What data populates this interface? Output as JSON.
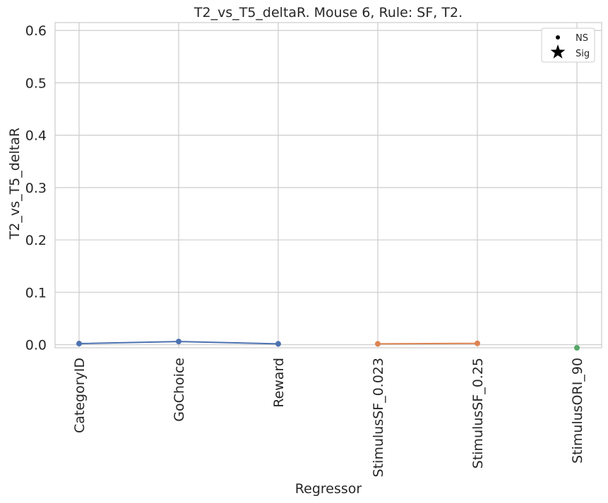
{
  "chart_data": {
    "type": "line",
    "title": "T2_vs_T5_deltaR. Mouse 6, Rule: SF, T2.",
    "xlabel": "Regressor",
    "ylabel": "T2_vs_T5_deltaR",
    "categories": [
      "CategoryID",
      "GoChoice",
      "Reward",
      "StimulusSF_0.023",
      "StimulusSF_0.25",
      "StimulusORI_90"
    ],
    "ylim": [
      -0.006,
      0.615
    ],
    "yticks": [
      0.0,
      0.1,
      0.2,
      0.3,
      0.4,
      0.5,
      0.6
    ],
    "ytick_labels": [
      "0.0",
      "0.1",
      "0.2",
      "0.3",
      "0.4",
      "0.5",
      "0.6"
    ],
    "grid": true,
    "legend_position": "top-right",
    "legend": [
      {
        "label": "NS",
        "marker": "dot"
      },
      {
        "label": "Sig",
        "marker": "star"
      }
    ],
    "series": [
      {
        "color": "#4c72b0",
        "x": [
          0,
          1,
          2
        ],
        "values": [
          0.002,
          0.006,
          0.0015
        ]
      },
      {
        "color": "#dd8452",
        "x": [
          3,
          4
        ],
        "values": [
          0.0015,
          0.0025
        ]
      },
      {
        "color": "#55a868",
        "x": [
          5
        ],
        "values": [
          -0.006
        ]
      }
    ]
  }
}
